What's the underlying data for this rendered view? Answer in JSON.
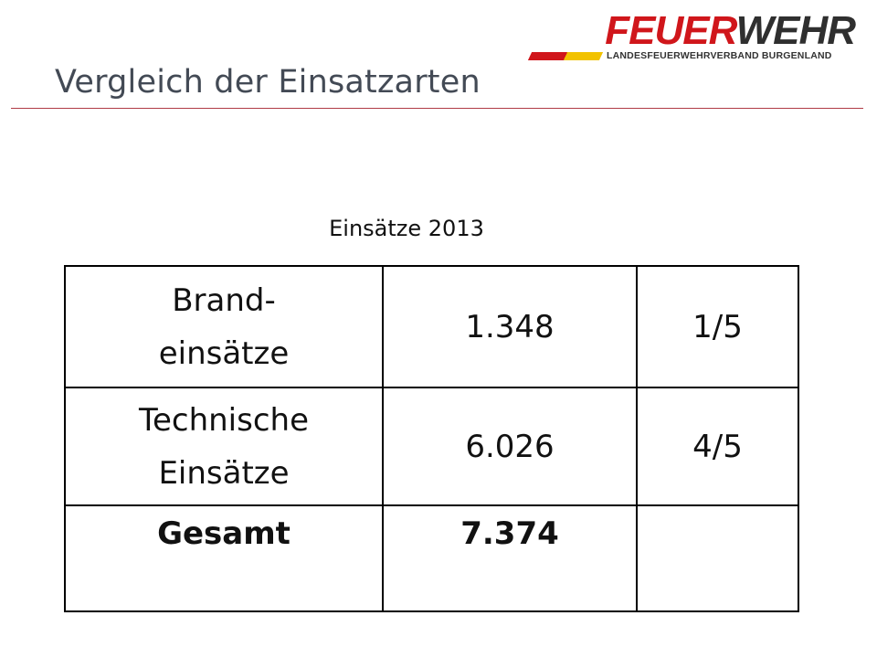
{
  "slide": {
    "title": "Vergleich der Einsatzarten"
  },
  "logo": {
    "word_part1": "FEUER",
    "word_part2": "WEHR",
    "subtitle": "LANDESFEUERWEHRVERBAND BURGENLAND",
    "stripe_colors": [
      "#d0161b",
      "#f2c200"
    ]
  },
  "table": {
    "caption": "Einsätze 2013",
    "rows": [
      {
        "label_line1": "Brand-",
        "label_line2": "einsätze",
        "value": "1.348",
        "share": "1/5"
      },
      {
        "label_line1": "Technische",
        "label_line2": "Einsätze",
        "value": "6.026",
        "share": "4/5"
      },
      {
        "label_line1": "Gesamt",
        "label_line2": "",
        "value": "7.374",
        "share": ""
      }
    ]
  }
}
